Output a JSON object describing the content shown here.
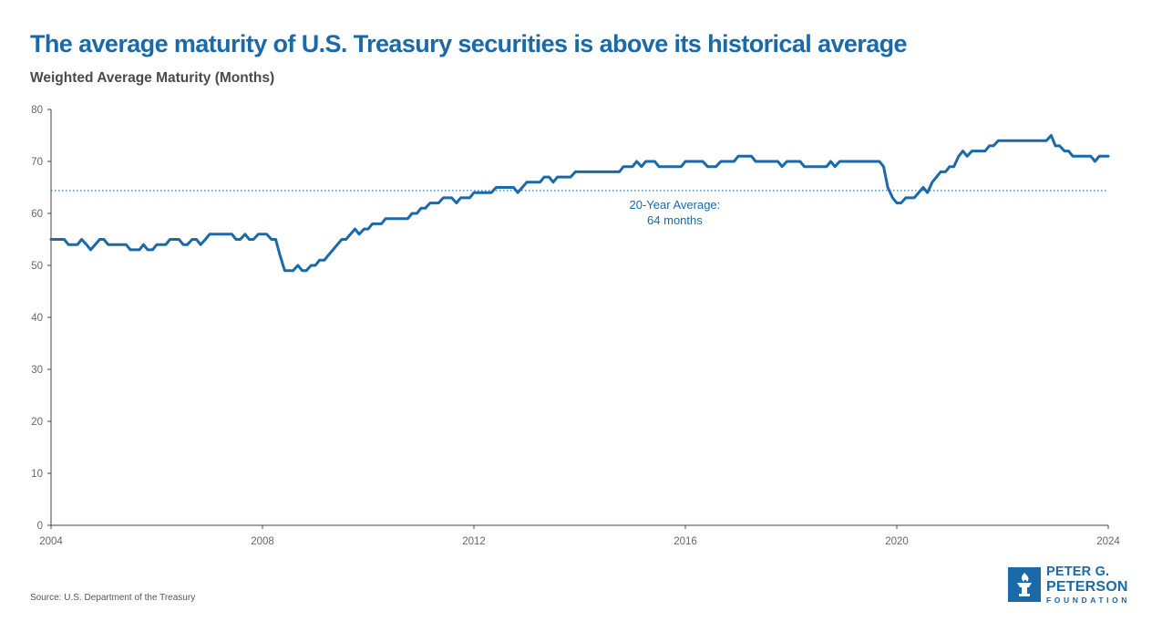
{
  "header": {
    "title": "The average maturity of U.S. Treasury securities is above its historical average",
    "subtitle": "Weighted Average Maturity (Months)"
  },
  "footer": {
    "source": "Source: U.S. Department of the Treasury"
  },
  "logo": {
    "line1": "PETER G.",
    "line2": "PETERSON",
    "line3": "FOUNDATION",
    "color": "#1a69a8"
  },
  "colors": {
    "series": "#1a69a8",
    "axis": "#444444",
    "tick_label": "#666666",
    "title": "#1a69a8"
  },
  "chart_data": {
    "type": "line",
    "title": "The average maturity of U.S. Treasury securities is above its historical average",
    "ylabel": "Weighted Average Maturity (Months)",
    "xlim": [
      2004,
      2024
    ],
    "ylim": [
      0,
      80
    ],
    "xticks": [
      2004,
      2008,
      2012,
      2016,
      2020,
      2024
    ],
    "yticks": [
      0,
      10,
      20,
      30,
      40,
      50,
      60,
      70,
      80
    ],
    "grid": false,
    "reference_line": {
      "value": 64.4,
      "style": "dotted",
      "label_line1": "20-Year Average:",
      "label_line2": "64 months"
    },
    "series": [
      {
        "values": [
          [
            2004.0,
            55
          ],
          [
            2004.25,
            55
          ],
          [
            2004.33,
            54
          ],
          [
            2004.5,
            54
          ],
          [
            2004.58,
            55
          ],
          [
            2004.67,
            54
          ],
          [
            2004.75,
            53
          ],
          [
            2004.92,
            55
          ],
          [
            2005.0,
            55
          ],
          [
            2005.08,
            54
          ],
          [
            2005.42,
            54
          ],
          [
            2005.5,
            53
          ],
          [
            2005.67,
            53
          ],
          [
            2005.75,
            54
          ],
          [
            2005.83,
            53
          ],
          [
            2005.92,
            53
          ],
          [
            2006.0,
            54
          ],
          [
            2006.17,
            54
          ],
          [
            2006.25,
            55
          ],
          [
            2006.42,
            55
          ],
          [
            2006.5,
            54
          ],
          [
            2006.58,
            54
          ],
          [
            2006.67,
            55
          ],
          [
            2006.75,
            55
          ],
          [
            2006.83,
            54
          ],
          [
            2006.92,
            55
          ],
          [
            2007.0,
            56
          ],
          [
            2007.42,
            56
          ],
          [
            2007.5,
            55
          ],
          [
            2007.58,
            55
          ],
          [
            2007.67,
            56
          ],
          [
            2007.75,
            55
          ],
          [
            2007.83,
            55
          ],
          [
            2007.92,
            56
          ],
          [
            2008.08,
            56
          ],
          [
            2008.17,
            55
          ],
          [
            2008.25,
            55
          ],
          [
            2008.33,
            52
          ],
          [
            2008.42,
            49
          ],
          [
            2008.58,
            49
          ],
          [
            2008.67,
            50
          ],
          [
            2008.75,
            49
          ],
          [
            2008.83,
            49
          ],
          [
            2008.92,
            50
          ],
          [
            2009.0,
            50
          ],
          [
            2009.08,
            51
          ],
          [
            2009.17,
            51
          ],
          [
            2009.25,
            52
          ],
          [
            2009.5,
            55
          ],
          [
            2009.58,
            55
          ],
          [
            2009.75,
            57
          ],
          [
            2009.83,
            56
          ],
          [
            2009.92,
            57
          ],
          [
            2010.0,
            57
          ],
          [
            2010.08,
            58
          ],
          [
            2010.25,
            58
          ],
          [
            2010.33,
            59
          ],
          [
            2010.75,
            59
          ],
          [
            2010.83,
            60
          ],
          [
            2010.92,
            60
          ],
          [
            2011.0,
            61
          ],
          [
            2011.08,
            61
          ],
          [
            2011.17,
            62
          ],
          [
            2011.33,
            62
          ],
          [
            2011.42,
            63
          ],
          [
            2011.58,
            63
          ],
          [
            2011.67,
            62
          ],
          [
            2011.75,
            63
          ],
          [
            2011.92,
            63
          ],
          [
            2012.0,
            64
          ],
          [
            2012.33,
            64
          ],
          [
            2012.42,
            65
          ],
          [
            2012.75,
            65
          ],
          [
            2012.83,
            64
          ],
          [
            2013.0,
            66
          ],
          [
            2013.25,
            66
          ],
          [
            2013.33,
            67
          ],
          [
            2013.42,
            67
          ],
          [
            2013.5,
            66
          ],
          [
            2013.58,
            67
          ],
          [
            2013.83,
            67
          ],
          [
            2013.92,
            68
          ],
          [
            2014.75,
            68
          ],
          [
            2014.83,
            69
          ],
          [
            2015.0,
            69
          ],
          [
            2015.08,
            70
          ],
          [
            2015.17,
            69
          ],
          [
            2015.25,
            70
          ],
          [
            2015.42,
            70
          ],
          [
            2015.5,
            69
          ],
          [
            2015.92,
            69
          ],
          [
            2016.0,
            70
          ],
          [
            2016.33,
            70
          ],
          [
            2016.42,
            69
          ],
          [
            2016.58,
            69
          ],
          [
            2016.67,
            70
          ],
          [
            2016.92,
            70
          ],
          [
            2017.0,
            71
          ],
          [
            2017.25,
            71
          ],
          [
            2017.33,
            70
          ],
          [
            2017.75,
            70
          ],
          [
            2017.83,
            69
          ],
          [
            2017.92,
            70
          ],
          [
            2018.17,
            70
          ],
          [
            2018.25,
            69
          ],
          [
            2018.67,
            69
          ],
          [
            2018.75,
            70
          ],
          [
            2018.83,
            69
          ],
          [
            2018.92,
            70
          ],
          [
            2019.67,
            70
          ],
          [
            2019.75,
            69
          ],
          [
            2019.83,
            65
          ],
          [
            2019.92,
            63
          ],
          [
            2020.0,
            62
          ],
          [
            2020.08,
            62
          ],
          [
            2020.17,
            63
          ],
          [
            2020.33,
            63
          ],
          [
            2020.5,
            65
          ],
          [
            2020.58,
            64
          ],
          [
            2020.67,
            66
          ],
          [
            2020.75,
            67
          ],
          [
            2020.83,
            68
          ],
          [
            2020.92,
            68
          ],
          [
            2021.0,
            69
          ],
          [
            2021.08,
            69
          ],
          [
            2021.17,
            71
          ],
          [
            2021.25,
            72
          ],
          [
            2021.33,
            71
          ],
          [
            2021.42,
            72
          ],
          [
            2021.67,
            72
          ],
          [
            2021.75,
            73
          ],
          [
            2021.83,
            73
          ],
          [
            2021.92,
            74
          ],
          [
            2022.83,
            74
          ],
          [
            2022.92,
            75
          ],
          [
            2023.0,
            73
          ],
          [
            2023.08,
            73
          ],
          [
            2023.17,
            72
          ],
          [
            2023.25,
            72
          ],
          [
            2023.33,
            71
          ],
          [
            2023.67,
            71
          ],
          [
            2023.75,
            70
          ],
          [
            2023.83,
            71
          ],
          [
            2024.0,
            71
          ]
        ]
      }
    ]
  }
}
